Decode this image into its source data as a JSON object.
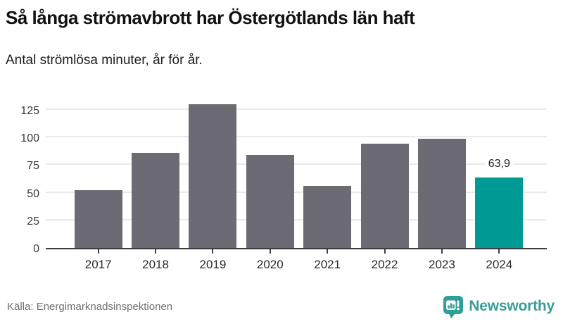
{
  "chart_data": {
    "type": "bar",
    "title": "Så långa strömavbrott har Östergötlands län haft",
    "subtitle": "Antal strömlösa minuter, år för år.",
    "categories": [
      "2017",
      "2018",
      "2019",
      "2020",
      "2021",
      "2022",
      "2023",
      "2024"
    ],
    "values": [
      52,
      86,
      130,
      84,
      56,
      94,
      99,
      63.9
    ],
    "data_labels": {
      "2024": "63,9"
    },
    "xlabel": "",
    "ylabel": "",
    "yticks": [
      0,
      25,
      50,
      75,
      100,
      125
    ],
    "ylim": [
      0,
      135
    ],
    "grid": true,
    "legend": "none",
    "bar_color": "#6c6b73",
    "highlight_color": "#009a94",
    "highlight_index": 7
  },
  "footer": {
    "source": "Källa: Energimarknadsinspektionen",
    "brand": "Newsworthy",
    "brand_color": "#3b9d99"
  }
}
